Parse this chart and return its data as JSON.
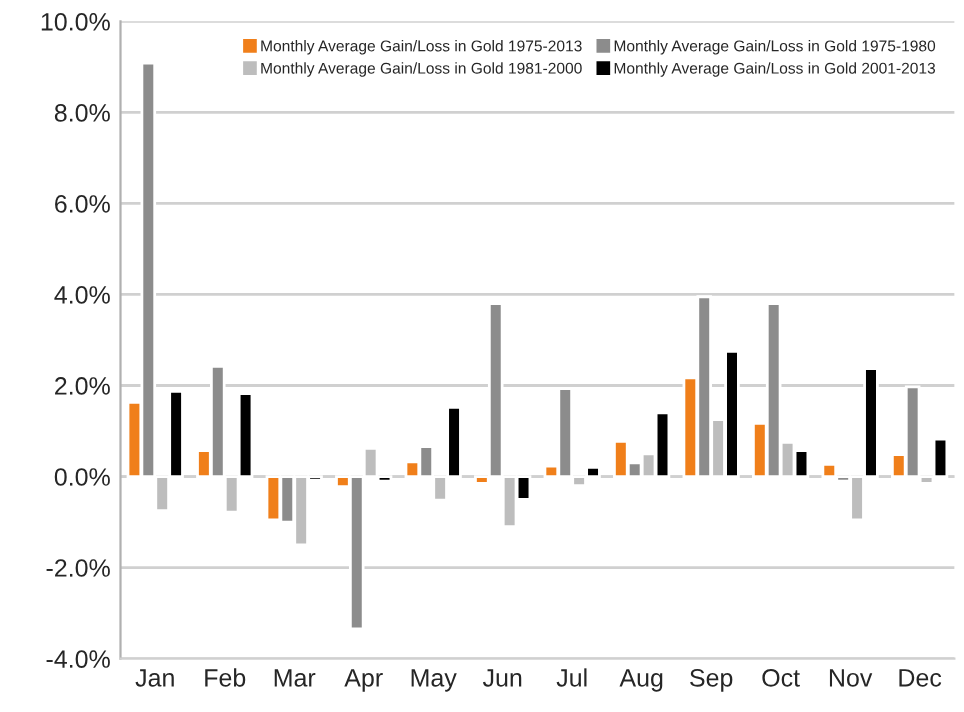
{
  "chart_data": {
    "type": "bar",
    "categories": [
      "Jan",
      "Feb",
      "Mar",
      "Apr",
      "May",
      "Jun",
      "Jul",
      "Aug",
      "Sep",
      "Oct",
      "Nov",
      "Dec"
    ],
    "series": [
      {
        "name": "Monthly Average Gain/Loss in Gold 1975-2013",
        "color": "#f07f1a",
        "values": [
          1.63,
          0.57,
          -0.95,
          -0.22,
          0.32,
          -0.15,
          0.23,
          0.77,
          2.17,
          1.17,
          0.27,
          0.48
        ]
      },
      {
        "name": "Monthly Average Gain/Loss in Gold 1975-1980",
        "color": "#8c8c8c",
        "values": [
          9.08,
          2.42,
          -1.0,
          -3.35,
          0.66,
          3.8,
          1.93,
          0.3,
          3.95,
          3.8,
          -0.1,
          1.97
        ]
      },
      {
        "name": "Monthly Average Gain/Loss in Gold 1981-2000",
        "color": "#bdbdbd",
        "values": [
          -0.75,
          -0.78,
          -1.5,
          0.62,
          -0.52,
          -1.1,
          -0.2,
          0.5,
          1.25,
          0.75,
          -0.95,
          -0.15
        ]
      },
      {
        "name": "Monthly Average Gain/Loss in Gold 2001-2013",
        "color": "#000000",
        "values": [
          1.87,
          1.82,
          -0.08,
          -0.1,
          1.52,
          -0.5,
          0.2,
          1.4,
          2.75,
          0.57,
          2.37,
          0.82
        ]
      }
    ],
    "ylim": [
      -4,
      10
    ],
    "yticks": [
      {
        "value": -4,
        "label": "-4.0%"
      },
      {
        "value": -2,
        "label": "-2.0%"
      },
      {
        "value": 0,
        "label": "0.0%"
      },
      {
        "value": 2,
        "label": "2.0%"
      },
      {
        "value": 4,
        "label": "4.0%"
      },
      {
        "value": 6,
        "label": "6.0%"
      },
      {
        "value": 8,
        "label": "8.0%"
      },
      {
        "value": 10,
        "label": "10.0%"
      }
    ],
    "grid": "y",
    "legend": "top"
  }
}
